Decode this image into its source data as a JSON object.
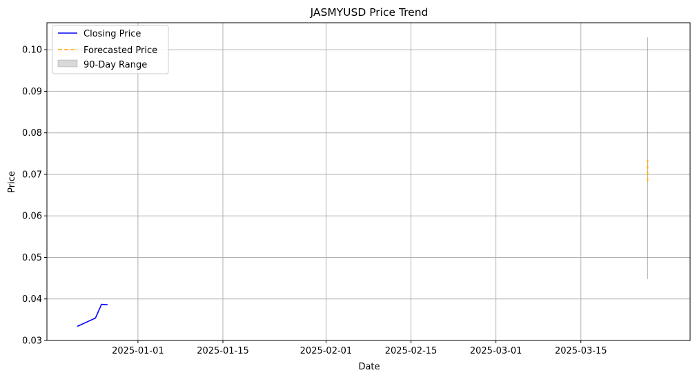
{
  "chart_data": {
    "type": "line",
    "title": "JASMYUSD Price Trend",
    "xlabel": "Date",
    "ylabel": "Price",
    "x_axis": "date",
    "xlim": [
      "2024-12-17",
      "2025-04-02"
    ],
    "ylim": [
      0.03,
      0.1065
    ],
    "x_ticks": [
      "2025-01-01",
      "2025-01-15",
      "2025-02-01",
      "2025-02-15",
      "2025-03-01",
      "2025-03-15"
    ],
    "y_ticks": [
      0.03,
      0.04,
      0.05,
      0.06,
      0.07,
      0.08,
      0.09,
      0.1
    ],
    "y_tick_labels": [
      "0.03",
      "0.04",
      "0.05",
      "0.06",
      "0.07",
      "0.08",
      "0.09",
      "0.10"
    ],
    "grid": true,
    "legend_position": "upper left",
    "series": [
      {
        "name": "Closing Price",
        "style": "solid",
        "color": "#0000ff",
        "points": [
          {
            "x": "2024-12-22",
            "y": 0.0334
          },
          {
            "x": "2024-12-25",
            "y": 0.0354
          },
          {
            "x": "2024-12-26",
            "y": 0.0387
          },
          {
            "x": "2024-12-27",
            "y": 0.0386
          }
        ]
      },
      {
        "name": "Forecasted Price",
        "style": "dashed",
        "color": "#ffa500",
        "points": [
          {
            "x": "2025-03-26",
            "y": 0.0683
          },
          {
            "x": "2025-03-26",
            "y": 0.0735
          }
        ]
      }
    ],
    "band": {
      "name": "90-Day Range",
      "color": "#808080",
      "opacity": 0.3,
      "x": "2025-03-26",
      "low": 0.0448,
      "high": 0.103
    }
  }
}
